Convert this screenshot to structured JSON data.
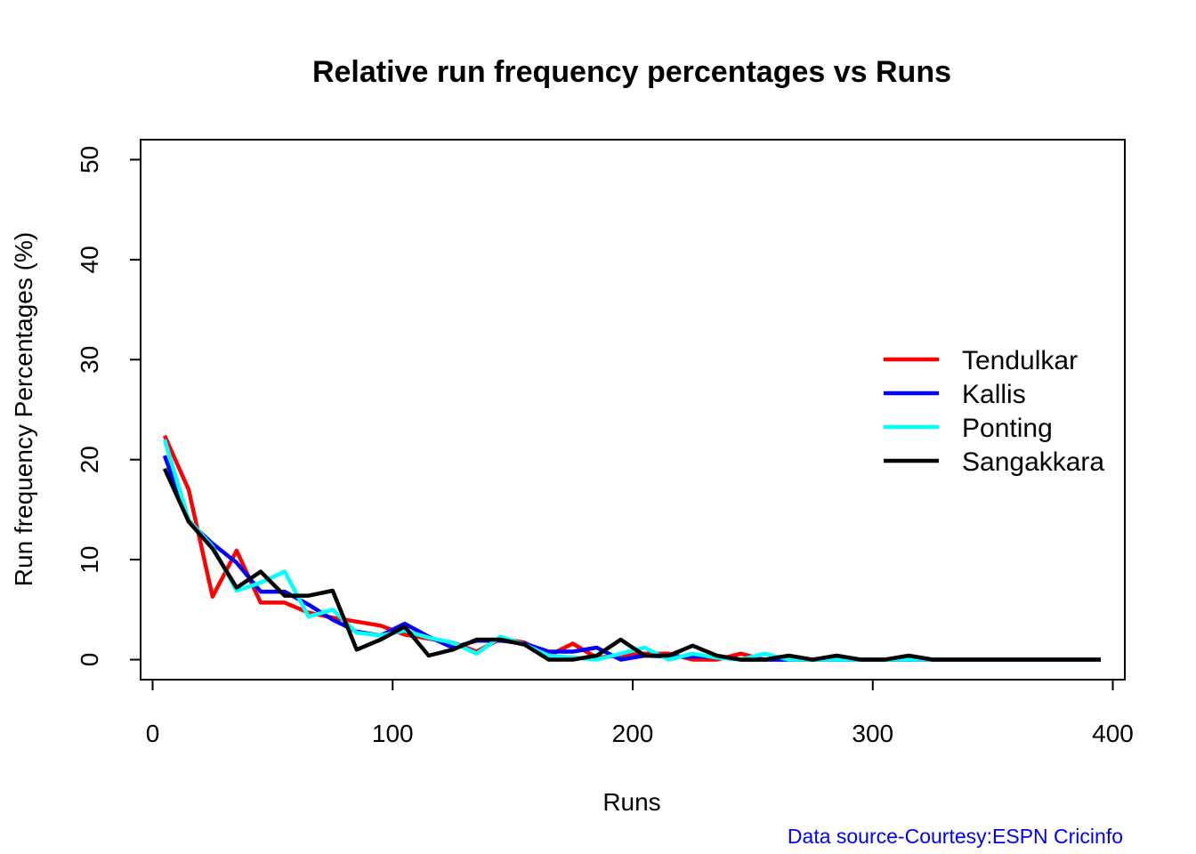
{
  "chart_data": {
    "type": "line",
    "title": "Relative run frequency percentages vs Runs",
    "xlabel": "Runs",
    "ylabel": "Run frequency Percentages (%)",
    "xlim": [
      -5,
      405
    ],
    "ylim": [
      -2,
      52
    ],
    "xticks": [
      0,
      100,
      200,
      300,
      400
    ],
    "yticks": [
      0,
      10,
      20,
      30,
      40,
      50
    ],
    "x": [
      5,
      15,
      25,
      35,
      45,
      55,
      65,
      75,
      85,
      95,
      105,
      115,
      125,
      135,
      145,
      155,
      165,
      175,
      185,
      195,
      205,
      215,
      225,
      235,
      245,
      255,
      265,
      275,
      285,
      295,
      305,
      315,
      325,
      335,
      345,
      355,
      365,
      375,
      385,
      395
    ],
    "series": [
      {
        "name": "Tendulkar",
        "color": "#ff0000",
        "values": [
          22.4,
          17.0,
          6.3,
          10.9,
          5.7,
          5.7,
          4.7,
          4.2,
          3.8,
          3.4,
          2.5,
          2.1,
          1.7,
          0.8,
          2.1,
          1.7,
          0.4,
          1.6,
          0.2,
          0.4,
          0.6,
          0.6,
          0.0,
          0.0,
          0.6,
          0.0,
          0.0,
          0.0,
          0.0,
          0.0,
          0.0,
          0.0,
          0.0,
          0.0,
          0.0,
          0.0,
          0.0,
          0.0,
          0.0,
          0.0
        ]
      },
      {
        "name": "Kallis",
        "color": "#0000ff",
        "values": [
          20.4,
          13.8,
          11.6,
          9.7,
          6.8,
          6.8,
          5.5,
          4.0,
          2.8,
          2.4,
          3.6,
          2.3,
          1.2,
          1.9,
          1.9,
          1.6,
          0.8,
          0.8,
          1.2,
          0.0,
          0.4,
          0.3,
          0.3,
          0.3,
          0.0,
          0.0,
          0.0,
          0.0,
          0.0,
          0.0,
          0.0,
          0.0,
          0.0,
          0.0,
          0.0,
          0.0,
          0.0,
          0.0,
          0.0,
          0.0
        ]
      },
      {
        "name": "Ponting",
        "color": "#00ffff",
        "values": [
          22.0,
          14.0,
          11.3,
          6.9,
          7.7,
          8.8,
          4.3,
          5.0,
          2.7,
          2.4,
          2.9,
          2.2,
          1.7,
          0.6,
          2.3,
          1.5,
          0.4,
          0.2,
          0.0,
          0.6,
          1.2,
          0.0,
          0.6,
          0.2,
          0.0,
          0.6,
          0.0,
          0.0,
          0.0,
          0.0,
          0.0,
          0.0,
          0.0,
          0.0,
          0.0,
          0.0,
          0.0,
          0.0,
          0.0,
          0.0
        ]
      },
      {
        "name": "Sangakkara",
        "color": "#000000",
        "values": [
          19.1,
          13.8,
          11.1,
          7.2,
          8.8,
          6.4,
          6.4,
          6.9,
          1.0,
          2.0,
          3.3,
          0.4,
          1.0,
          2.0,
          2.0,
          1.5,
          0.0,
          0.0,
          0.4,
          2.0,
          0.4,
          0.4,
          1.4,
          0.4,
          0.0,
          0.0,
          0.4,
          0.0,
          0.4,
          0.0,
          0.0,
          0.4,
          0.0,
          0.0,
          0.0,
          0.0,
          0.0,
          0.0,
          0.0,
          0.0
        ]
      }
    ],
    "legend_position": "right",
    "grid": false
  },
  "source_note": "Data source-Courtesy:ESPN Cricinfo"
}
